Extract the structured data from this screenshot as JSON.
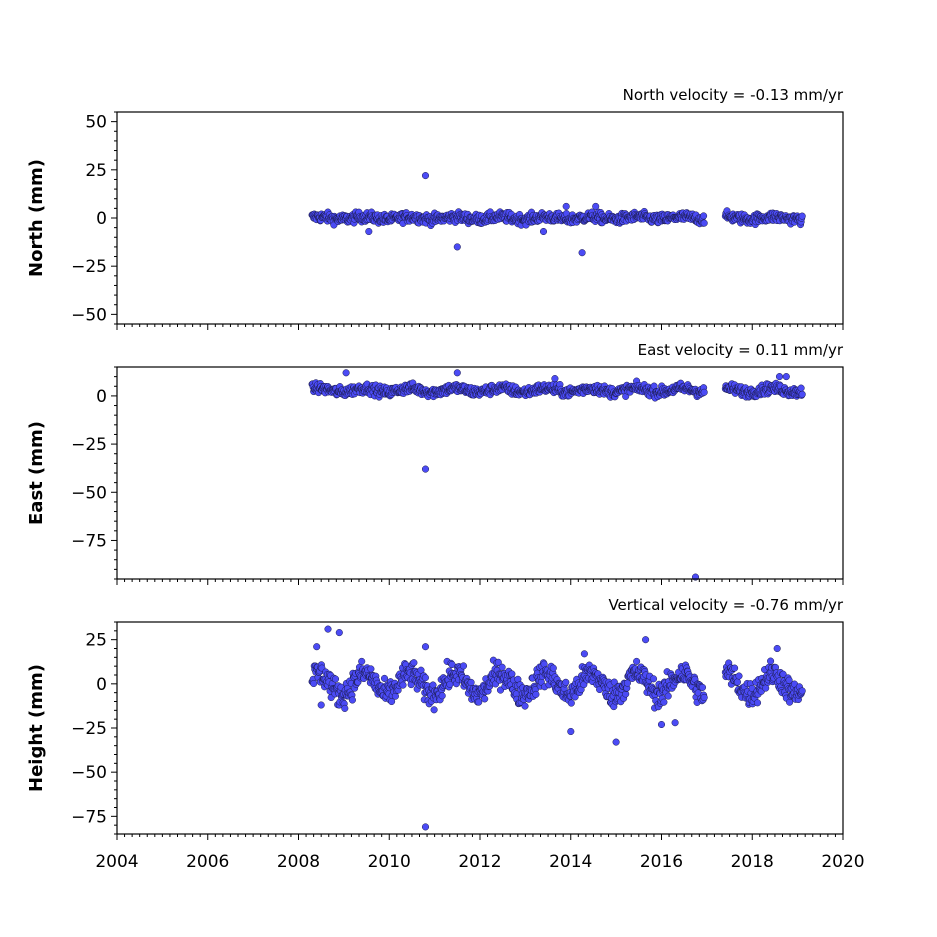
{
  "chart_data": [
    {
      "type": "scatter",
      "title": "North velocity = -0.13 mm/yr",
      "ylabel": "North (mm)",
      "xlim": [
        2004,
        2020
      ],
      "ylim": [
        -55,
        55
      ],
      "yticks": [
        -50,
        -25,
        0,
        25,
        50
      ],
      "xticks": [
        2004,
        2006,
        2008,
        2010,
        2012,
        2014,
        2016,
        2018,
        2020
      ],
      "show_xtick_labels": false,
      "data_span": [
        2008.3,
        2019.1
      ],
      "gap": [
        2016.95,
        2017.4
      ],
      "baseline": 0,
      "noise_amplitude": 2.5,
      "seasonal_amplitude": 0.6,
      "outliers": [
        {
          "x": 2010.8,
          "y": 22
        },
        {
          "x": 2011.5,
          "y": -15
        },
        {
          "x": 2014.25,
          "y": -18
        },
        {
          "x": 2009.55,
          "y": -7
        },
        {
          "x": 2013.4,
          "y": -7
        },
        {
          "x": 2013.9,
          "y": 6
        },
        {
          "x": 2014.55,
          "y": 6
        }
      ]
    },
    {
      "type": "scatter",
      "title": "East velocity = 0.11 mm/yr",
      "ylabel": "East (mm)",
      "xlim": [
        2004,
        2020
      ],
      "ylim": [
        -95,
        15
      ],
      "yticks": [
        -75,
        -50,
        -25,
        0
      ],
      "xticks": [
        2004,
        2006,
        2008,
        2010,
        2012,
        2014,
        2016,
        2018,
        2020
      ],
      "show_xtick_labels": false,
      "data_span": [
        2008.3,
        2019.1
      ],
      "gap": [
        2016.95,
        2017.4
      ],
      "baseline": 3,
      "noise_amplitude": 2.5,
      "seasonal_amplitude": 1.0,
      "outliers": [
        {
          "x": 2010.8,
          "y": -38
        },
        {
          "x": 2009.05,
          "y": 12
        },
        {
          "x": 2011.5,
          "y": 12
        },
        {
          "x": 2016.75,
          "y": -94
        },
        {
          "x": 2013.65,
          "y": 9
        },
        {
          "x": 2018.6,
          "y": 10
        },
        {
          "x": 2018.75,
          "y": 10
        }
      ]
    },
    {
      "type": "scatter",
      "title": "Vertical velocity = -0.76 mm/yr",
      "ylabel": "Height (mm)",
      "xlim": [
        2004,
        2020
      ],
      "ylim": [
        -85,
        35
      ],
      "yticks": [
        -75,
        -50,
        -25,
        0,
        25
      ],
      "xticks": [
        2004,
        2006,
        2008,
        2010,
        2012,
        2014,
        2016,
        2018,
        2020
      ],
      "show_xtick_labels": true,
      "data_span": [
        2008.3,
        2019.1
      ],
      "gap": [
        2016.95,
        2017.4
      ],
      "baseline": 0,
      "noise_amplitude": 7,
      "seasonal_amplitude": 6,
      "outliers": [
        {
          "x": 2010.8,
          "y": -81
        },
        {
          "x": 2008.65,
          "y": 31
        },
        {
          "x": 2008.9,
          "y": 29
        },
        {
          "x": 2008.4,
          "y": 21
        },
        {
          "x": 2008.5,
          "y": -12
        },
        {
          "x": 2014.0,
          "y": -27
        },
        {
          "x": 2014.3,
          "y": 17
        },
        {
          "x": 2015.0,
          "y": -33
        },
        {
          "x": 2015.65,
          "y": 25
        },
        {
          "x": 2016.0,
          "y": -23
        },
        {
          "x": 2016.3,
          "y": -22
        },
        {
          "x": 2018.55,
          "y": 20
        },
        {
          "x": 2010.8,
          "y": 21
        }
      ]
    }
  ]
}
